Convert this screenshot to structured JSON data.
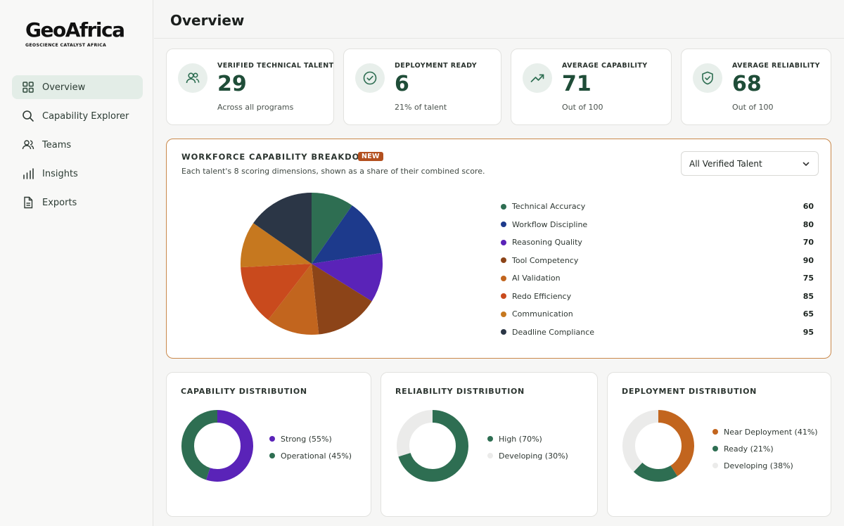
{
  "sidebar": {
    "logo": {
      "word": "GeoAfrica",
      "tagline": "GEOSCIENCE CATALYST AFRICA"
    },
    "items": [
      {
        "label": "Overview",
        "icon": "grid-icon",
        "active": true
      },
      {
        "label": "Capability Explorer",
        "icon": "search-icon",
        "active": false
      },
      {
        "label": "Teams",
        "icon": "users-icon",
        "active": false
      },
      {
        "label": "Insights",
        "icon": "bar-chart-icon",
        "active": false
      },
      {
        "label": "Exports",
        "icon": "file-icon",
        "active": false
      }
    ]
  },
  "header": {
    "title": "Overview"
  },
  "stats": [
    {
      "label": "VERIFIED TECHNICAL TALENT",
      "value": "29",
      "sub": "Across all programs",
      "icon": "users-icon"
    },
    {
      "label": "DEPLOYMENT READY",
      "value": "6",
      "sub": "21% of talent",
      "icon": "check-circle-icon"
    },
    {
      "label": "AVERAGE CAPABILITY",
      "value": "71",
      "sub": "Out of 100",
      "icon": "trending-up-icon"
    },
    {
      "label": "AVERAGE RELIABILITY",
      "value": "68",
      "sub": "Out of 100",
      "icon": "shield-icon"
    }
  ],
  "breakdown": {
    "title": "WORKFORCE CAPABILITY BREAKDOWN",
    "badge": "NEW",
    "subtitle": "Each talent's 8 scoring dimensions, shown as a share of their combined score.",
    "filter": {
      "selected": "All Verified Talent"
    }
  },
  "chart_data": {
    "type": "pie",
    "categories": [
      "Technical Accuracy",
      "Workflow Discipline",
      "Reasoning Quality",
      "Tool Competency",
      "AI Validation",
      "Redo Efficiency",
      "Communication",
      "Deadline Compliance"
    ],
    "values": [
      60,
      80,
      70,
      90,
      75,
      85,
      65,
      95
    ],
    "colors": [
      "#2e6e52",
      "#1d3a8c",
      "#5a23b8",
      "#8c4418",
      "#c2651e",
      "#c94a1d",
      "#c6781f",
      "#2b3646"
    ]
  },
  "distributions": [
    {
      "title": "CAPABILITY DISTRIBUTION",
      "segments": [
        {
          "label": "Strong (55%)",
          "value": 55,
          "color": "#5a23b8"
        },
        {
          "label": "Operational (45%)",
          "value": 45,
          "color": "#2e6e52"
        }
      ]
    },
    {
      "title": "RELIABILITY DISTRIBUTION",
      "segments": [
        {
          "label": "High (70%)",
          "value": 70,
          "color": "#2e6e52"
        },
        {
          "label": "Developing (30%)",
          "value": 30,
          "color": "#ebebea"
        }
      ]
    },
    {
      "title": "DEPLOYMENT DISTRIBUTION",
      "segments": [
        {
          "label": "Near Deployment (41%)",
          "value": 41,
          "color": "#c2651e"
        },
        {
          "label": "Ready (21%)",
          "value": 21,
          "color": "#2e6e52"
        },
        {
          "label": "Developing (38%)",
          "value": 38,
          "color": "#ebebea"
        }
      ]
    }
  ]
}
